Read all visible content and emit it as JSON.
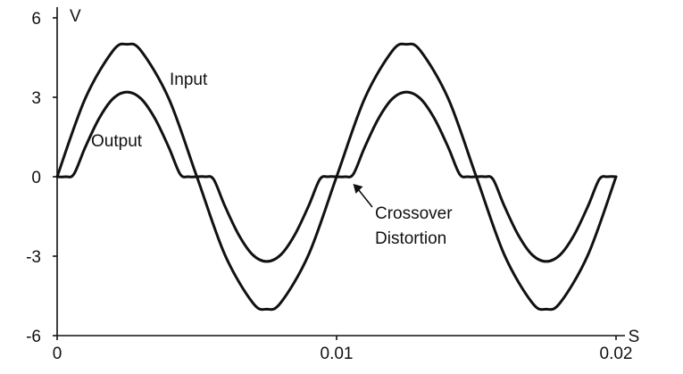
{
  "chart_data": {
    "type": "line",
    "title": "",
    "xlabel": "S",
    "ylabel": "V",
    "xlim": [
      0,
      0.02
    ],
    "ylim": [
      -6,
      6
    ],
    "x_ticks": [
      {
        "value": 0,
        "label": "0"
      },
      {
        "value": 0.01,
        "label": "0.01"
      },
      {
        "value": 0.02,
        "label": "0.02"
      }
    ],
    "y_ticks": [
      {
        "value": 6,
        "label": "6"
      },
      {
        "value": 3,
        "label": "3"
      },
      {
        "value": 0,
        "label": "0"
      },
      {
        "value": -3,
        "label": "-3"
      },
      {
        "value": -6,
        "label": "-6"
      }
    ],
    "grid": false,
    "series": [
      {
        "name": "Input",
        "x": [
          0,
          0.001,
          0.002,
          0.0025,
          0.003,
          0.004,
          0.005,
          0.006,
          0.007,
          0.0075,
          0.008,
          0.009,
          0.01,
          0.011,
          0.012,
          0.0125,
          0.013,
          0.014,
          0.015,
          0.016,
          0.017,
          0.0175,
          0.018,
          0.019,
          0.02
        ],
        "values": [
          0,
          2.94,
          4.76,
          5.0,
          4.76,
          2.94,
          0,
          -2.94,
          -4.76,
          -5.0,
          -4.76,
          -2.94,
          0,
          2.94,
          4.76,
          5.0,
          4.76,
          2.94,
          0,
          -2.94,
          -4.76,
          -5.0,
          -4.76,
          -2.94,
          0
        ]
      },
      {
        "name": "Output",
        "x": [
          0,
          0.0003,
          0.0006,
          0.001,
          0.0015,
          0.002,
          0.0025,
          0.003,
          0.0035,
          0.004,
          0.0044,
          0.0047,
          0.005,
          0.0053,
          0.0056,
          0.006,
          0.0065,
          0.007,
          0.0075,
          0.008,
          0.0085,
          0.009,
          0.0094,
          0.0097,
          0.01,
          0.0103,
          0.0106,
          0.011,
          0.0115,
          0.012,
          0.0125,
          0.013,
          0.0135,
          0.014,
          0.0144,
          0.0147,
          0.015,
          0.0153,
          0.0156,
          0.016,
          0.0165,
          0.017,
          0.0175,
          0.018,
          0.0185,
          0.019,
          0.0194,
          0.0197,
          0.02
        ],
        "values": [
          0,
          0,
          0.1,
          1.1,
          2.2,
          2.95,
          3.2,
          2.95,
          2.2,
          1.1,
          0.1,
          0,
          0,
          0,
          -0.1,
          -1.1,
          -2.2,
          -2.95,
          -3.2,
          -2.95,
          -2.2,
          -1.1,
          -0.1,
          0,
          0,
          0,
          0.1,
          1.1,
          2.2,
          2.95,
          3.2,
          2.95,
          2.2,
          1.1,
          0.1,
          0,
          0,
          0,
          -0.1,
          -1.1,
          -2.2,
          -2.95,
          -3.2,
          -2.95,
          -2.2,
          -1.1,
          -0.1,
          0,
          0
        ]
      }
    ],
    "annotations": [
      {
        "text": "Input"
      },
      {
        "text": "Output"
      },
      {
        "lines": [
          "Crossover",
          "Distortion"
        ],
        "target": [
          0.0104,
          0
        ]
      }
    ]
  }
}
